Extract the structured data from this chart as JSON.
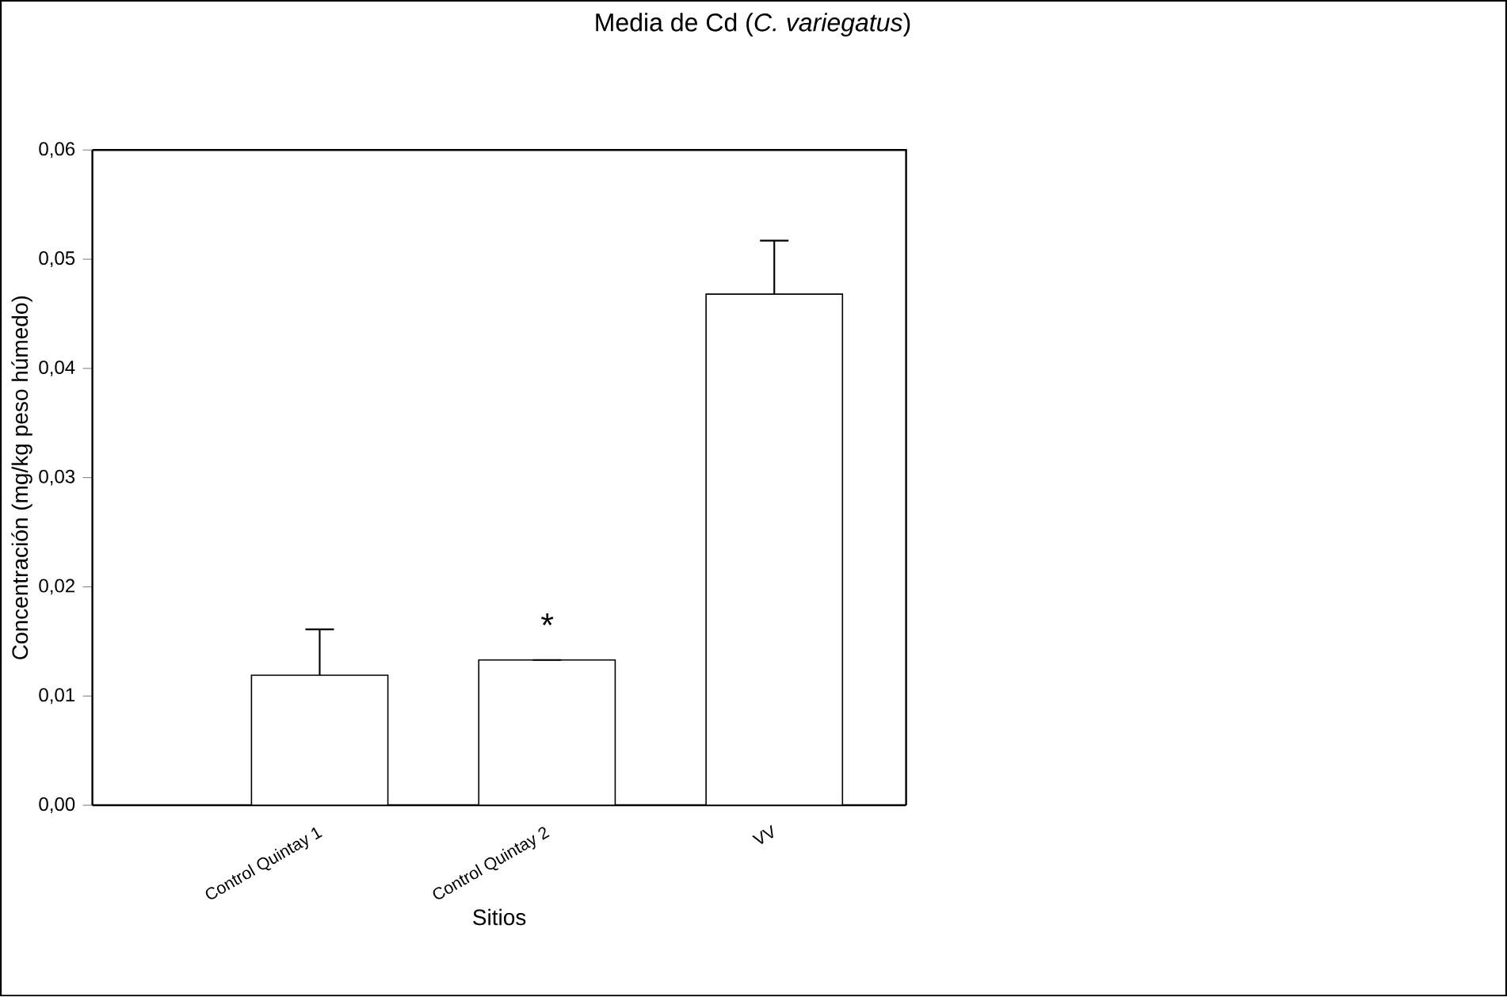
{
  "chart_data": {
    "type": "bar",
    "title": "Media de Cd (*C. variegatus*)",
    "xlabel": "Sitios",
    "ylabel": "Concentración (mg/kg peso húmedo)",
    "categories": [
      "Control Quintay 1",
      "Control Quintay 2",
      "VV"
    ],
    "values": [
      0.0119,
      0.0133,
      0.0468
    ],
    "errors": [
      [
        0.0119,
        0.0161
      ],
      null,
      [
        0.0468,
        0.0517
      ]
    ],
    "color": "#ffffff",
    "ylim": [
      0,
      0.06
    ],
    "yticks": [
      {
        "value": 0,
        "label": "0,00"
      },
      {
        "value": 0.01,
        "label": "0,01"
      },
      {
        "value": 0.02,
        "label": "0,02"
      },
      {
        "value": 0.03,
        "label": "0,03"
      },
      {
        "value": 0.04,
        "label": "0,04"
      },
      {
        "value": 0.05,
        "label": "0,05"
      },
      {
        "value": 0.06,
        "label": "0,06"
      }
    ],
    "annotations": [
      "*"
    ]
  }
}
